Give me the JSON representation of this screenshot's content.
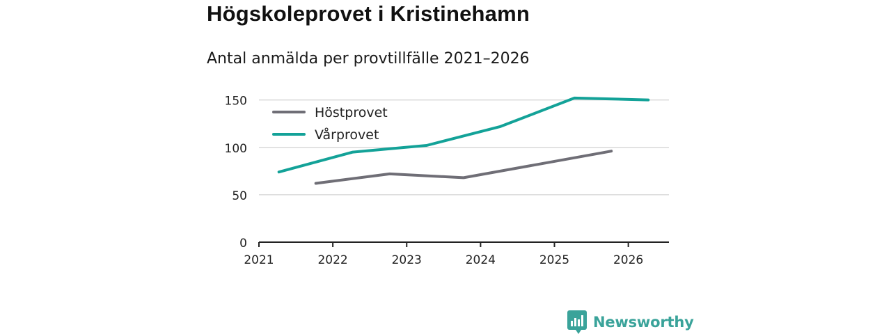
{
  "header": {
    "title": "Högskoleprovet i Kristinehamn",
    "subtitle": "Antal anmälda per provtillfälle 2021–2026"
  },
  "brand": {
    "name": "Newsworthy"
  },
  "colors": {
    "host": "#6f6e76",
    "var": "#13a298",
    "grid": "#d9d9d9",
    "axis": "#222222",
    "brand": "#3aa39a"
  },
  "chart_data": {
    "type": "line",
    "title": "Antal anmälda per provtillfälle 2021–2026",
    "xlabel": "",
    "ylabel": "",
    "xlim": [
      2021,
      2026.55
    ],
    "ylim": [
      0,
      160
    ],
    "yticks": [
      0,
      50,
      100,
      150
    ],
    "xticks": [
      2021,
      2022,
      2023,
      2024,
      2025,
      2026
    ],
    "grid": true,
    "legend_position": "top-left",
    "series": [
      {
        "name": "Höstprovet",
        "color_key": "host",
        "x": [
          2021.77,
          2022.77,
          2023.77,
          2024.77,
          2025.77
        ],
        "y": [
          62,
          72,
          68,
          82,
          96
        ]
      },
      {
        "name": "Vårprovet",
        "color_key": "var",
        "x": [
          2021.27,
          2022.27,
          2023.27,
          2024.27,
          2025.27,
          2026.27
        ],
        "y": [
          74,
          95,
          102,
          122,
          152,
          150
        ]
      }
    ]
  }
}
